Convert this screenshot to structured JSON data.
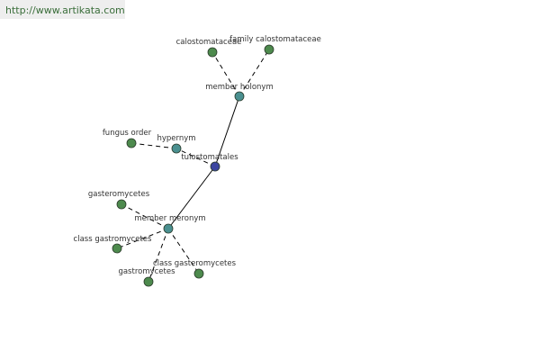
{
  "header": {
    "url": "http://www.artikata.com"
  },
  "nodes": [
    {
      "label": "tulostomatales"
    },
    {
      "label": "member holonym"
    },
    {
      "label": "calostomataceae"
    },
    {
      "label": "family calostomataceae"
    },
    {
      "label": "hypernym"
    },
    {
      "label": "fungus order"
    },
    {
      "label": "member meronym"
    },
    {
      "label": "gasteromycetes"
    },
    {
      "label": "class gastromycetes"
    },
    {
      "label": "gastromycetes"
    },
    {
      "label": "class gasteromycetes"
    }
  ]
}
